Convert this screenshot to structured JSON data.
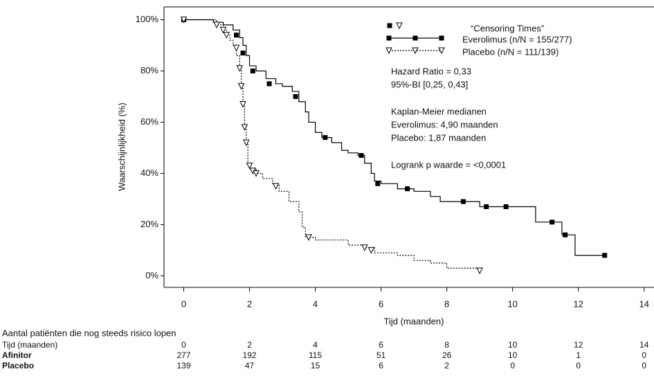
{
  "chart_data": {
    "type": "step",
    "xlabel": "Tijd (maanden)",
    "ylabel": "Waarschijnlijkheid (%)",
    "xlim": [
      -0.6,
      14.3
    ],
    "ylim": [
      -4.5,
      105
    ],
    "xticks": [
      0,
      2,
      4,
      6,
      8,
      10,
      12,
      14
    ],
    "yticks": [
      {
        "value": 0,
        "label": "0%"
      },
      {
        "value": 20,
        "label": "20%"
      },
      {
        "value": 40,
        "label": "40%"
      },
      {
        "value": 60,
        "label": "60%"
      },
      {
        "value": 80,
        "label": "80%"
      },
      {
        "value": 100,
        "label": "100%"
      }
    ],
    "legend_title": "“Censoring Times”",
    "series": [
      {
        "name": "Everolimus (n/N = 155/277)",
        "color": "#000000",
        "dash": "none",
        "marker": "square",
        "x": [
          0,
          0.6,
          0.9,
          1.2,
          1.5,
          1.7,
          1.8,
          1.9,
          2.0,
          2.2,
          2.5,
          2.8,
          3.0,
          3.3,
          3.5,
          3.7,
          3.8,
          4.0,
          4.2,
          4.5,
          4.8,
          5.0,
          5.3,
          5.5,
          5.7,
          5.8,
          6.0,
          6.5,
          7.0,
          7.5,
          7.8,
          9.0,
          10.7,
          11.5,
          11.9,
          12.8
        ],
        "values": [
          100,
          100,
          99,
          98,
          96,
          93,
          90,
          86,
          82,
          80,
          77,
          75,
          74,
          72,
          68,
          64,
          60,
          56,
          54,
          52,
          49,
          48,
          47,
          44,
          40,
          37,
          36,
          34,
          33,
          31,
          29,
          27,
          21,
          16,
          8,
          8
        ],
        "censored_x": [
          0,
          1.6,
          1.8,
          2.1,
          2.6,
          3.4,
          4.3,
          5.4,
          5.9,
          6.8,
          8.5,
          9.2,
          9.8,
          11.2,
          11.6,
          12.8
        ],
        "censored_values": [
          100,
          94,
          87,
          80,
          75,
          70,
          54,
          47,
          36,
          34,
          29,
          27,
          27,
          21,
          16,
          8
        ]
      },
      {
        "name": "Placebo (n/N = 111/139)",
        "color": "#000000",
        "dash": "2,2",
        "marker": "triangle",
        "x": [
          0,
          0.8,
          1.0,
          1.2,
          1.3,
          1.4,
          1.5,
          1.6,
          1.7,
          1.75,
          1.8,
          1.85,
          1.9,
          1.95,
          2.0,
          2.2,
          2.4,
          2.7,
          2.9,
          3.2,
          3.5,
          3.6,
          3.7,
          4.0,
          5.0,
          5.5,
          5.8,
          6.5,
          7.0,
          7.5,
          8.0,
          9.0
        ],
        "values": [
          100,
          100,
          98,
          96,
          94,
          92,
          90,
          86,
          81,
          74,
          67,
          58,
          52,
          44,
          42,
          40,
          38,
          36,
          33,
          29,
          25,
          19,
          15,
          14,
          12,
          11,
          9,
          8,
          6,
          5,
          3,
          2
        ],
        "censored_x": [
          0,
          1.0,
          1.2,
          1.3,
          1.6,
          1.7,
          1.75,
          1.8,
          1.85,
          1.9,
          2.0,
          2.1,
          2.2,
          2.8,
          3.8,
          5.5,
          5.7,
          9.0
        ],
        "censored_values": [
          100,
          98,
          96,
          94,
          89,
          81,
          74,
          67,
          58,
          52,
          43,
          41,
          40,
          35,
          15,
          11,
          10,
          2
        ]
      }
    ],
    "annotations": [
      "Hazard Ratio = 0,33",
      "95%-BI [0,25, 0,43]",
      "Kaplan-Meier medianen",
      "Everolimus: 4,90 maanden",
      "Placebo: 1,87 maanden",
      "Logrank p waarde = <0,0001"
    ],
    "risk_table": {
      "title": "Aantal patiënten die nog steeds risico lopen",
      "rows": [
        {
          "label": "Tijd (maanden)",
          "values": [
            0,
            2,
            4,
            6,
            8,
            10,
            12,
            14
          ]
        },
        {
          "label": "Afinitor",
          "values": [
            277,
            192,
            115,
            51,
            26,
            10,
            1,
            0
          ]
        },
        {
          "label": "Placebo",
          "values": [
            139,
            47,
            15,
            6,
            2,
            0,
            0,
            0
          ]
        }
      ]
    }
  }
}
